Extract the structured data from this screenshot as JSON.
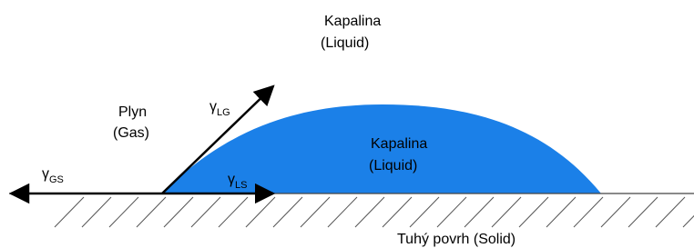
{
  "labels": {
    "top_liquid": {
      "name": "Kapalina",
      "translation": "(Liquid)"
    },
    "gas": {
      "name": "Plyn",
      "translation": "(Gas)"
    },
    "drop_liquid": {
      "name": "Kapalina",
      "translation": "(Liquid)"
    },
    "solid": "Tuhý povrh (Solid)",
    "gamma_lg": {
      "symbol": "γ",
      "subscript": "LG"
    },
    "gamma_gs": {
      "symbol": "γ",
      "subscript": "GS"
    },
    "gamma_ls": {
      "symbol": "γ",
      "subscript": "LS"
    }
  }
}
